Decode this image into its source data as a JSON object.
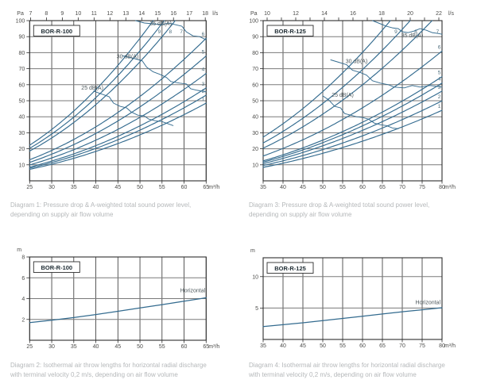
{
  "colors": {
    "curve": "#336b8f",
    "grid_v": "#2e2e2e",
    "grid_h": "#7a7a7a",
    "frame": "#2e2e2e",
    "axis_text": "#4c4c4a",
    "caption_text": "#b5b8ba",
    "title_text": "#222f36",
    "curve_label": "#51707e",
    "contour_label": "#4f5a5e"
  },
  "chart_data": [
    {
      "id": "diagram-1",
      "type": "line",
      "title": "BOR-R-100",
      "caption": {
        "line1": "Diagram 1: Pressure drop & A-weighted total sound power level,",
        "line2": "depending on supply air flow volume"
      },
      "y_unit": "Pa",
      "x_unit": "m³/h",
      "x2_unit": "l/s",
      "xlim": [
        25,
        65
      ],
      "ylim": [
        0,
        100
      ],
      "x_ticks": [
        25,
        30,
        35,
        40,
        45,
        50,
        55,
        60,
        65
      ],
      "y_ticks": [
        10,
        20,
        30,
        40,
        50,
        60,
        70,
        80,
        90,
        100
      ],
      "x2_ticks": [
        7,
        8,
        9,
        10,
        11,
        12,
        13,
        14,
        15,
        16,
        17,
        18
      ],
      "x2_labeled": [
        7,
        8,
        9,
        10,
        11,
        12,
        13,
        14,
        15,
        16,
        17,
        18
      ],
      "x2_factor": 3.6,
      "fan_curves": [
        {
          "label": "1",
          "k": 0.01148
        },
        {
          "label": "2",
          "k": 0.01266
        },
        {
          "label": "3",
          "k": 0.01373
        },
        {
          "label": "4",
          "k": 0.01586
        },
        {
          "label": "5",
          "k": 0.01846
        },
        {
          "label": "6",
          "k": 0.02107
        },
        {
          "label": "7",
          "k": 0.02973
        },
        {
          "label": "8",
          "k": 0.03246
        },
        {
          "label": "9",
          "k": 0.0356
        }
      ],
      "sound_contours": [
        {
          "name": "25 dB(A)",
          "label_at": [
            39.2,
            58
          ],
          "points": [
            [
              39.5,
              56
            ],
            [
              41.5,
              54
            ],
            [
              43,
              52.5
            ],
            [
              44,
              48.5
            ],
            [
              45.5,
              46.5
            ],
            [
              47,
              45.5
            ],
            [
              48,
              43
            ],
            [
              49.5,
              41
            ],
            [
              51,
              40.5
            ],
            [
              52,
              38.5
            ],
            [
              53.5,
              37.5
            ],
            [
              55,
              37
            ],
            [
              56.5,
              35.5
            ],
            [
              57.5,
              34.5
            ]
          ]
        },
        {
          "name": "30 dB(A)",
          "label_at": [
            47.2,
            77.5
          ],
          "points": [
            [
              46,
              78
            ],
            [
              48.5,
              76.5
            ],
            [
              50.5,
              75
            ],
            [
              51.5,
              71
            ],
            [
              53,
              68
            ],
            [
              54.5,
              66.5
            ],
            [
              56,
              64.5
            ],
            [
              57,
              62
            ],
            [
              59,
              61
            ],
            [
              60.5,
              60.5
            ],
            [
              61.5,
              57.5
            ],
            [
              63,
              56.5
            ],
            [
              65,
              55.5
            ]
          ]
        },
        {
          "name": "35 dB(A)",
          "label_at": [
            54.7,
            98
          ],
          "points": [
            [
              49,
              100
            ],
            [
              51,
              98.5
            ],
            [
              53,
              98
            ],
            [
              55,
              97.5
            ],
            [
              56.5,
              98.5
            ],
            [
              58,
              97.5
            ],
            [
              59.5,
              96.5
            ],
            [
              60.5,
              93
            ],
            [
              62,
              90.5
            ],
            [
              63.5,
              90
            ],
            [
              65,
              88
            ]
          ]
        }
      ]
    },
    {
      "id": "diagram-3",
      "type": "line",
      "title": "BOR-R-125",
      "caption": {
        "line1": "Diagram 3: Pressure drop & A-weighted total sound power level,",
        "line2": "depending on supply air flow volume"
      },
      "y_unit": "Pa",
      "x_unit": "m³/h",
      "x2_unit": "l/s",
      "xlim": [
        35,
        80
      ],
      "ylim": [
        0,
        100
      ],
      "x_ticks": [
        35,
        40,
        45,
        50,
        55,
        60,
        65,
        70,
        75,
        80
      ],
      "y_ticks": [
        10,
        20,
        30,
        40,
        50,
        60,
        70,
        80,
        90,
        100
      ],
      "x2_ticks": [
        10,
        11,
        12,
        13,
        14,
        15,
        16,
        17,
        18,
        19,
        20,
        21,
        22
      ],
      "x2_labeled": [
        10,
        12,
        14,
        16,
        18,
        20,
        22
      ],
      "x2_factor": 3.6,
      "fan_curves": [
        {
          "label": "1",
          "k": 0.006875
        },
        {
          "label": "2",
          "k": 0.0078
        },
        {
          "label": "3",
          "k": 0.00875
        },
        {
          "label": "4",
          "k": 0.00953
        },
        {
          "label": "5",
          "k": 0.01016
        },
        {
          "label": "6",
          "k": 0.01266
        },
        {
          "label": "7",
          "k": 0.01665
        },
        {
          "label": "8",
          "k": 0.0193
        },
        {
          "label": "9",
          "k": 0.02228
        }
      ],
      "sound_contours": [
        {
          "name": "25 dB(A)",
          "label_at": [
            55,
            53.5
          ],
          "points": [
            [
              50,
              53
            ],
            [
              51.5,
              50.5
            ],
            [
              53,
              46.5
            ],
            [
              54.5,
              45.5
            ],
            [
              55.5,
              42
            ],
            [
              57,
              41
            ],
            [
              58.5,
              40
            ],
            [
              60,
              39.5
            ],
            [
              61.5,
              38.5
            ],
            [
              63,
              36
            ],
            [
              64.5,
              35
            ],
            [
              66,
              34.5
            ],
            [
              67.5,
              33
            ],
            [
              69,
              32.5
            ]
          ]
        },
        {
          "name": "30 dB(A)",
          "label_at": [
            58.5,
            74.5
          ],
          "points": [
            [
              52,
              75.5
            ],
            [
              54,
              74
            ],
            [
              56,
              72.5
            ],
            [
              57.5,
              69
            ],
            [
              59.5,
              67.5
            ],
            [
              61,
              66
            ],
            [
              62.5,
              62.5
            ],
            [
              64.5,
              61
            ],
            [
              66.5,
              60
            ],
            [
              68,
              58.5
            ],
            [
              70.5,
              58
            ],
            [
              72.5,
              59.5
            ],
            [
              74.5,
              58.5
            ],
            [
              77,
              59.5
            ],
            [
              80,
              58.5
            ]
          ]
        },
        {
          "name": "35 dB(A)",
          "label_at": [
            72.5,
            90.5
          ],
          "points": [
            [
              62.5,
              100
            ],
            [
              64.5,
              98
            ],
            [
              66,
              96.5
            ],
            [
              67.5,
              95.5
            ],
            [
              69,
              95
            ],
            [
              70,
              93
            ],
            [
              71.5,
              92.5
            ],
            [
              73,
              93.5
            ],
            [
              74.5,
              95
            ],
            [
              76,
              94
            ],
            [
              77.5,
              92.5
            ],
            [
              79,
              92
            ],
            [
              80,
              91.5
            ]
          ]
        }
      ]
    },
    {
      "id": "diagram-2",
      "type": "line",
      "title": "BOR-R-100",
      "caption": {
        "line1": "Diagram 2: Isothermal air throw lengths for horizontal radial discharge",
        "line2": "with terminal velocity 0,2 m/s, depending on air flow volume"
      },
      "y_unit": "m",
      "x_unit": "m³/h",
      "xlim": [
        25,
        65
      ],
      "ylim": [
        0,
        8
      ],
      "x_ticks": [
        25,
        30,
        35,
        40,
        45,
        50,
        55,
        60,
        65
      ],
      "y_ticks": [
        2,
        4,
        6,
        8
      ],
      "throw_line": {
        "label": "Horizontal",
        "label_at": [
          64.8,
          4.75
        ],
        "points": [
          [
            25,
            1.7
          ],
          [
            30,
            1.93
          ],
          [
            35,
            2.18
          ],
          [
            40,
            2.47
          ],
          [
            45,
            2.78
          ],
          [
            50,
            3.1
          ],
          [
            55,
            3.42
          ],
          [
            60,
            3.75
          ],
          [
            65,
            4.08
          ]
        ]
      }
    },
    {
      "id": "diagram-4",
      "type": "line",
      "title": "BOR-R-125",
      "caption": {
        "line1": "Diagram 4: Isothermal air throw lengths for horizontal radial discharge",
        "line2": "with terminal velocity 0,2 m/s, depending on air flow volume"
      },
      "y_unit": "m",
      "x_unit": "m³/h",
      "xlim": [
        35,
        80
      ],
      "ylim": [
        0,
        13
      ],
      "x_ticks": [
        35,
        40,
        45,
        50,
        55,
        60,
        65,
        70,
        75,
        80
      ],
      "y_ticks": [
        5,
        10
      ],
      "throw_line": {
        "label": "Horizontal",
        "label_at": [
          79.6,
          5.85
        ],
        "points": [
          [
            35,
            2.05
          ],
          [
            40,
            2.35
          ],
          [
            45,
            2.65
          ],
          [
            50,
            3.0
          ],
          [
            55,
            3.35
          ],
          [
            60,
            3.7
          ],
          [
            65,
            4.05
          ],
          [
            70,
            4.4
          ],
          [
            75,
            4.72
          ],
          [
            80,
            5.05
          ]
        ]
      }
    }
  ]
}
